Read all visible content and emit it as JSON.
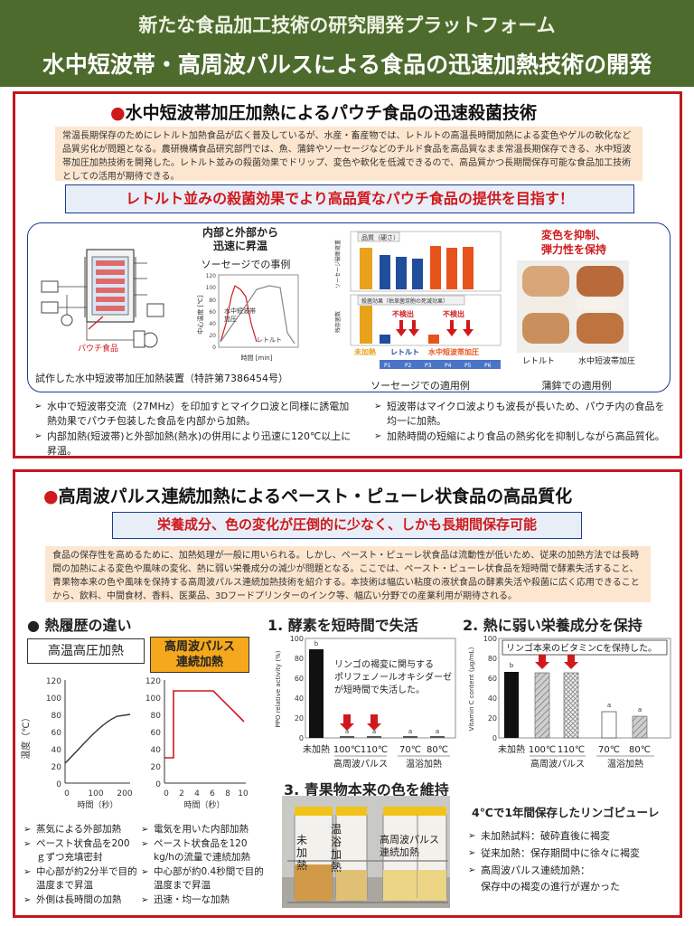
{
  "header": {
    "subtitle": "新たな食品加工技術の研究開発プラットフォーム",
    "title": "水中短波帯・高周波パルスによる食品の迅速加熱技術の開発"
  },
  "section1": {
    "title": "水中短波帯加圧加熱によるパウチ食品の迅速殺菌技術",
    "intro": "常温長期保存のためにレトルト加熱食品が広く普及しているが、水産・畜産物では、レトルトの高温長時間加熱による変色やゲルの軟化など品質劣化が問題となる。農研機構食品研究部門では、魚、蒲鉾やソーセージなどのチルド食品を高品質なまま常温長期保存できる、水中短波帯加圧加熱技術を開発した。レトルト並みの殺菌効果でドリップ、変色や軟化を低減できるので、高品質かつ長期間保存可能な食品加工技術としての活用が期待できる。",
    "banner": "レトルト並みの殺菌効果でより高品質なパウチ食品の提供を目指す！",
    "device_caption": "試作した水中短波帯加圧加熱装置（特許第7386454号）",
    "device_labels": {
      "pouch": "パウチ食品"
    },
    "rapid_heading": "内部と外部から\n迅速に昇温",
    "sausage_example": "ソーセージでの事例",
    "temp_chart": {
      "ylabel": "中心温度 [℃]",
      "xlabel": "時間 [min]",
      "yticks": [
        "120",
        "100",
        "80",
        "60",
        "40",
        "20",
        "0"
      ],
      "series_labels": [
        "水中短波帯\n加圧",
        "レトルト"
      ]
    },
    "sausage_caption": "ソーセージでの適用例",
    "quality_chart": {
      "top_label": "品質（硬さ）",
      "bottom_label": "殺菌効果（枯草菌芽胞の死滅効果）",
      "ylabel_top": "ソーセージ破断荷重",
      "ylabel_bottom": "残存菌数",
      "not_detected": "不検出",
      "groups": [
        "未加熱",
        "レトルト",
        "水中短波帯加圧"
      ],
      "codes": [
        "P1",
        "P2",
        "P3",
        "P4",
        "P5",
        "P6"
      ],
      "top_values": [
        1.9,
        1.5,
        1.4,
        1.35,
        1.95,
        1.85,
        1.9
      ],
      "colors": {
        "unheated": "#e8a21b",
        "retort": "#1f4e9c",
        "shortwave": "#e8521b"
      }
    },
    "color_heading": "変色を抑制、\n弾力性を保持",
    "kamaboko_labels": [
      "レトルト",
      "水中短波帯加圧"
    ],
    "kamaboko_caption": "蒲鉾での適用例",
    "bullets_left": [
      "水中で短波帯交流（27MHz）を印加すとマイクロ波と同様に誘電加熱効果でパウチ包装した食品を内部から加熱。",
      "内部加熱(短波帯)と外部加熱(熱水)の併用により迅速に120℃以上に昇温。"
    ],
    "bullets_right": [
      "短波帯はマイクロ波よりも波長が長いため、パウチ内の食品を均一に加熱。",
      "加熱時間の短縮により食品の熱劣化を抑制しながら高品質化。"
    ]
  },
  "section2": {
    "title": "高周波パルス連続加熱によるペースト・ピューレ状食品の高品質化",
    "banner": "栄養成分、色の変化が圧倒的に少なく、しかも長期間保存可能",
    "intro": "食品の保存性を高めるために、加熱処理が一般に用いられる。しかし、ペースト・ピューレ状食品は流動性が低いため、従来の加熱方法では長時間の加熱による変色や風味の変化、熱に弱い栄養成分の減少が問題となる。ここでは、ペースト・ピューレ状食品を短時間で酵素失活すること、青果物本来の色や風味を保持する高周波パルス連続加熱技術を紹介する。本技術は幅広い粘度の液状食品の酵素失活や殺菌に広く応用できることから、飲料、中間食材、香料、医薬品、3Dフードプリンターのインク等、幅広い分野での産業利用が期待される。",
    "heat_history": {
      "heading": "● 熱履歴の違い",
      "left_label": "高温高圧加熱",
      "right_label": "高周波パルス\n連続加熱",
      "ylabel": "温度（℃）",
      "left_xlabel": "時間（秒）",
      "right_xlabel": "時間（秒）",
      "yticks": [
        "120",
        "100",
        "80",
        "60",
        "40",
        "20",
        "0"
      ],
      "left_xticks": [
        "0",
        "100",
        "200"
      ],
      "right_xticks": [
        "0",
        "2",
        "4",
        "6",
        "8",
        "10"
      ]
    },
    "enzyme": {
      "heading": "1. 酵素を短時間で失活",
      "note": "リンゴの褐変に関与する\nポリフェノールオキシダーゼ\nが短時間で失活した。",
      "ylabel": "PPO relative activity (%)",
      "yticks": [
        "100",
        "80",
        "60",
        "40",
        "20",
        "0"
      ],
      "categories": [
        "未加熱",
        "100℃",
        "110℃",
        "70℃",
        "80℃"
      ],
      "values": [
        90,
        1.5,
        1.5,
        1.5,
        1.5
      ],
      "letters": [
        "b",
        "a",
        "a",
        "a",
        "a"
      ],
      "group_labels": [
        "高周波パルス",
        "温浴加熱"
      ]
    },
    "vitamin": {
      "heading": "2. 熱に弱い栄養成分を保持",
      "note": "リンゴ本来のビタミンCを保持した。",
      "ylabel": "Vitamin C content (µg/mL)",
      "yticks": [
        "100",
        "80",
        "60",
        "40",
        "20",
        "0"
      ],
      "categories": [
        "未加熱",
        "100℃",
        "110℃",
        "70℃",
        "80℃"
      ],
      "values": [
        66,
        65,
        65,
        26,
        22
      ],
      "letters": [
        "b",
        "b",
        "b",
        "a",
        "a"
      ],
      "group_labels": [
        "高周波パルス",
        "温浴加熱"
      ]
    },
    "color": {
      "heading": "3. 青果物本来の色を維持",
      "jar_labels": [
        "未\n加\n熱",
        "温\n浴\n加\n熱",
        "高周波パルス\n連続加熱"
      ],
      "storage_title": "4℃で1年間保存したリンゴピューレ",
      "storage_bullets": [
        "未加熱試料：破砕直後に褐変",
        "従来加熱：保存期間中に徐々に褐変",
        "高周波パルス連続加熱：\n保存中の褐変の進行が遅かった"
      ]
    },
    "bullets_left": [
      "蒸気による外部加熱",
      "ペースト状食品を200ｇずつ充填密封",
      "中心部が約2分半で目的温度まで昇温",
      "外側は長時間の加熱"
    ],
    "bullets_right": [
      "電気を用いた内部加熱",
      "ペースト状食品を120 kg/hの流量で連続加熱",
      "中心部が約0.4秒間で目的温度まで昇温",
      "迅速・均一な加熱"
    ]
  }
}
